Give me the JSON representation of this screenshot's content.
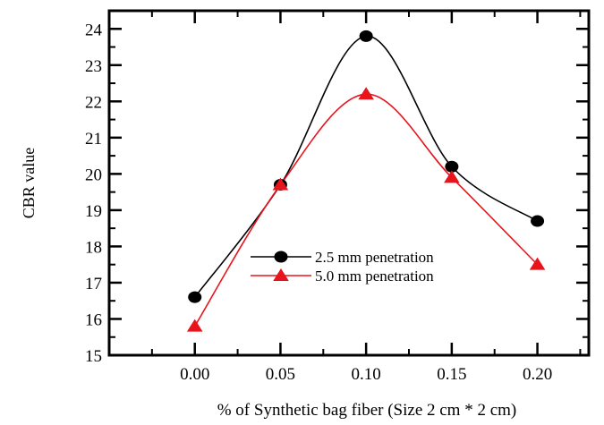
{
  "chart_data": {
    "type": "line",
    "title": "",
    "xlabel": "% of Synthetic bag fiber (Size 2 cm * 2 cm)",
    "ylabel": "CBR value",
    "x": [
      0.0,
      0.05,
      0.1,
      0.15,
      0.2
    ],
    "x_tick_labels": [
      "0.00",
      "0.05",
      "0.10",
      "0.15",
      "0.20"
    ],
    "xlim": [
      -0.05,
      0.23
    ],
    "ylim": [
      15,
      24.5
    ],
    "y_ticks": [
      15,
      16,
      17,
      18,
      19,
      20,
      21,
      22,
      23,
      24
    ],
    "grid": false,
    "legend_position": "center-right",
    "series": [
      {
        "name": "2.5 mm penetration",
        "values": [
          16.6,
          19.7,
          23.8,
          20.2,
          18.7
        ],
        "color": "#000000",
        "marker": "circle"
      },
      {
        "name": "5.0 mm penetration",
        "values": [
          15.8,
          19.7,
          22.2,
          19.9,
          17.5
        ],
        "color": "#e8141c",
        "marker": "triangle"
      }
    ]
  }
}
